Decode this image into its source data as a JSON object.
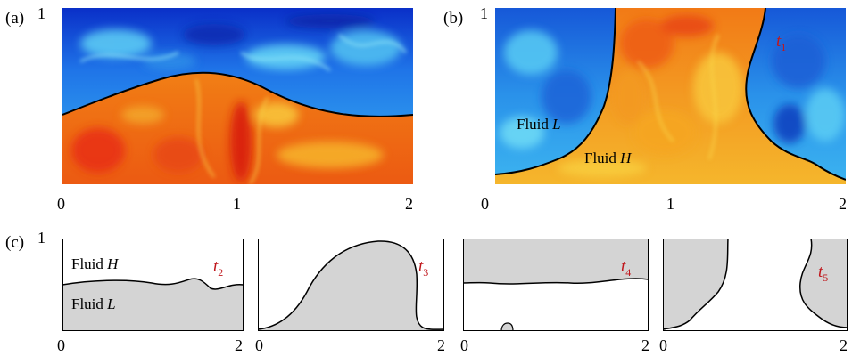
{
  "panel_a": {
    "label": "(a)",
    "y_tick_top": "1",
    "x_ticks": [
      "0",
      "1",
      "2"
    ]
  },
  "panel_b": {
    "label": "(b)",
    "y_tick_top": "1",
    "x_ticks": [
      "0",
      "1",
      "2"
    ],
    "fluid_l_text": "Fluid ",
    "fluid_l_sym": "L",
    "fluid_h_text": "Fluid ",
    "fluid_h_sym": "H",
    "time_base": "t",
    "time_sub": "1"
  },
  "panel_c": {
    "label": "(c)",
    "y_tick_top": "1",
    "fluid_h_text": "Fluid ",
    "fluid_h_sym": "H",
    "fluid_l_text": "Fluid ",
    "fluid_l_sym": "L",
    "subpanels": [
      {
        "time_base": "t",
        "time_sub": "2",
        "x_ticks": [
          "0",
          "2"
        ]
      },
      {
        "time_base": "t",
        "time_sub": "3",
        "x_ticks": [
          "0",
          "2"
        ]
      },
      {
        "time_base": "t",
        "time_sub": "4",
        "x_ticks": [
          "0",
          "2"
        ]
      },
      {
        "time_base": "t",
        "time_sub": "5",
        "x_ticks": [
          "0",
          "2"
        ]
      }
    ]
  },
  "colors": {
    "light_fluid_blue": "#1e78e6",
    "heavy_fluid_orange": "#f07814",
    "interface_line": "#000000",
    "shaded_fluid": "#d4d4d4",
    "time_label_red": "#c0171c"
  }
}
